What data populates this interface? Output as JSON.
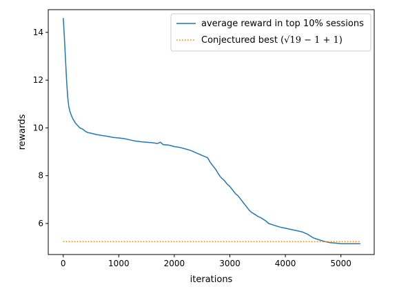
{
  "chart_data": {
    "type": "line",
    "xlabel": "iterations",
    "ylabel": "rewards",
    "xlim": [
      -270,
      5600
    ],
    "ylim": [
      4.7,
      14.95
    ],
    "xticks": [
      0,
      1000,
      2000,
      3000,
      4000,
      5000
    ],
    "yticks": [
      6,
      8,
      10,
      12,
      14
    ],
    "grid": false,
    "legend_position": "top-right",
    "series": [
      {
        "name": "average reward in top 10% sessions",
        "color": "#1f77b4",
        "style": "solid",
        "x": [
          0,
          20,
          40,
          60,
          80,
          100,
          120,
          150,
          180,
          220,
          260,
          300,
          350,
          400,
          450,
          500,
          550,
          600,
          650,
          700,
          800,
          900,
          1000,
          1100,
          1200,
          1300,
          1400,
          1500,
          1600,
          1700,
          1750,
          1800,
          1900,
          2000,
          2100,
          2200,
          2300,
          2400,
          2500,
          2600,
          2650,
          2700,
          2750,
          2800,
          2850,
          2900,
          2950,
          3000,
          3050,
          3100,
          3150,
          3200,
          3250,
          3300,
          3350,
          3400,
          3450,
          3500,
          3550,
          3600,
          3650,
          3700,
          3800,
          3900,
          4000,
          4100,
          4200,
          4300,
          4400,
          4500,
          4600,
          4700,
          4800,
          4900,
          5000,
          5100,
          5200,
          5350
        ],
        "y": [
          14.6,
          13.8,
          12.9,
          12.0,
          11.3,
          10.9,
          10.7,
          10.5,
          10.35,
          10.2,
          10.1,
          10.0,
          9.95,
          9.85,
          9.8,
          9.78,
          9.75,
          9.72,
          9.7,
          9.68,
          9.65,
          9.6,
          9.58,
          9.55,
          9.5,
          9.45,
          9.42,
          9.4,
          9.38,
          9.35,
          9.4,
          9.3,
          9.28,
          9.22,
          9.18,
          9.12,
          9.05,
          8.95,
          8.85,
          8.75,
          8.55,
          8.4,
          8.25,
          8.05,
          7.9,
          7.8,
          7.65,
          7.55,
          7.4,
          7.25,
          7.15,
          7.0,
          6.85,
          6.7,
          6.55,
          6.45,
          6.38,
          6.3,
          6.25,
          6.18,
          6.1,
          6.0,
          5.92,
          5.85,
          5.8,
          5.75,
          5.7,
          5.65,
          5.55,
          5.4,
          5.32,
          5.25,
          5.2,
          5.18,
          5.15,
          5.15,
          5.15,
          5.15
        ]
      },
      {
        "name": "Conjectured best (√19 − 1 + 1)",
        "color": "#ff7f0e",
        "style": "dotted",
        "x": [
          0,
          5350
        ],
        "y": [
          5.2426,
          5.2426
        ]
      }
    ],
    "legend": [
      {
        "text": "average reward in top 10% sessions"
      },
      {
        "text_prefix": "Conjectured best (",
        "text_math": "√19 − 1 + 1",
        "text_suffix": ")"
      }
    ]
  }
}
